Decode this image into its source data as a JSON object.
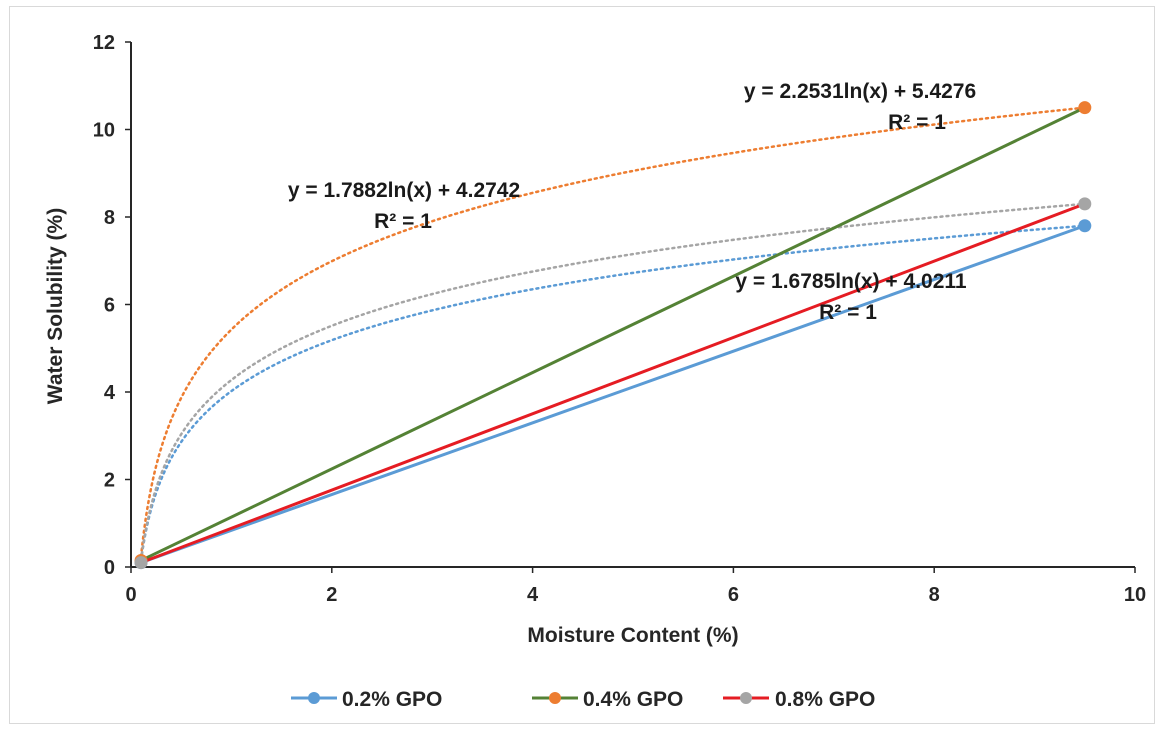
{
  "chart_data": {
    "type": "scatter",
    "title": "",
    "xlabel": "Moisture Content (%)",
    "ylabel": "Water Solubility (%)",
    "xlim": [
      0,
      10
    ],
    "ylim": [
      0,
      12
    ],
    "x_ticks": [
      0,
      2,
      4,
      6,
      8,
      10
    ],
    "y_ticks": [
      0,
      2,
      4,
      6,
      8,
      10,
      12
    ],
    "grid": false,
    "legend_position": "bottom",
    "series": [
      {
        "name": "0.2% GPO",
        "color": "#5b9bd5",
        "line_color": "#5b9bd5",
        "points": [
          {
            "x": 0.1,
            "y": 0.1
          },
          {
            "x": 9.5,
            "y": 7.8
          }
        ],
        "trendline": {
          "type": "log",
          "a": 1.6785,
          "b": 4.0211,
          "color": "#5b9bd5",
          "style": "dotted",
          "equation": "y = 1.6785ln(x) + 4.0211",
          "r2": "R² = 1"
        }
      },
      {
        "name": "0.4% GPO",
        "color": "#ed7d31",
        "line_color": "#548235",
        "points": [
          {
            "x": 0.1,
            "y": 0.15
          },
          {
            "x": 9.5,
            "y": 10.5
          }
        ],
        "trendline": {
          "type": "log",
          "a": 2.2531,
          "b": 5.4276,
          "color": "#ed7d31",
          "style": "dotted",
          "equation": "y = 2.2531ln(x) + 5.4276",
          "r2": "R² = 1"
        }
      },
      {
        "name": "0.8% GPO",
        "color": "#a5a5a5",
        "line_color": "#e51c23",
        "points": [
          {
            "x": 0.1,
            "y": 0.1
          },
          {
            "x": 9.5,
            "y": 8.3
          }
        ],
        "trendline": {
          "type": "log",
          "a": 1.7882,
          "b": 4.2742,
          "color": "#a5a5a5",
          "style": "dotted",
          "equation": "y = 1.7882ln(x) + 4.2742",
          "r2": "R² = 1"
        }
      }
    ]
  }
}
